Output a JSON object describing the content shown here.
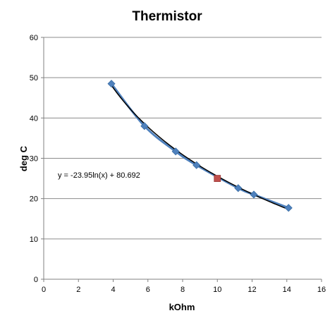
{
  "chart_data": {
    "type": "scatter",
    "title": "Thermistor",
    "xlabel": "kOhm",
    "ylabel": "deg C",
    "xlim": [
      0,
      16
    ],
    "ylim": [
      0,
      60
    ],
    "x_ticks": [
      0,
      2,
      4,
      6,
      8,
      10,
      12,
      14,
      16
    ],
    "y_ticks": [
      0,
      10,
      20,
      30,
      40,
      50,
      60
    ],
    "grid": {
      "horizontal": true,
      "vertical": false
    },
    "legend": "none",
    "series": [
      {
        "marker": "diamond",
        "color": "#4f81bd",
        "line": "smoothed",
        "points": [
          [
            3.9,
            48.5
          ],
          [
            5.8,
            38.0
          ],
          [
            7.6,
            31.7
          ],
          [
            8.8,
            28.3
          ],
          [
            11.2,
            22.6
          ],
          [
            12.1,
            21.0
          ],
          [
            14.1,
            17.7
          ]
        ]
      },
      {
        "marker": "square",
        "color": "#c0504d",
        "points": [
          [
            10.0,
            25.0
          ]
        ]
      }
    ],
    "trendline": {
      "type": "logarithmic",
      "a": -23.95,
      "b": 80.692,
      "color": "#000000",
      "equation_label": "y = -23.95ln(x) + 80.692"
    }
  }
}
